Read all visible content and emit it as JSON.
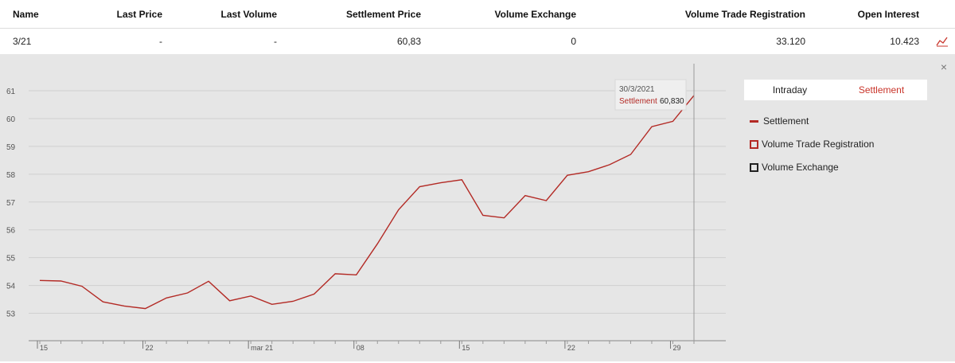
{
  "table": {
    "headers": [
      "Name",
      "Last Price",
      "Last Volume",
      "Settlement Price",
      "Volume Exchange",
      "Volume Trade Registration",
      "Open Interest"
    ],
    "row": {
      "name": "3/21",
      "last_price": "-",
      "last_volume": "-",
      "settlement_price": "60,83",
      "volume_exchange": "0",
      "volume_trade_registration": "33.120",
      "open_interest": "10.423"
    },
    "chart_icon": "line-chart-icon"
  },
  "panel": {
    "close_label": "×",
    "tabs": [
      {
        "label": "Intraday",
        "active": false
      },
      {
        "label": "Settlement",
        "active": true
      }
    ],
    "legend": [
      {
        "label": "Settlement",
        "marker": "line",
        "color": "#b32a25"
      },
      {
        "label": "Volume Trade Registration",
        "marker": "box",
        "color": "#b32a25"
      },
      {
        "label": "Volume Exchange",
        "marker": "box",
        "color": "#222222"
      }
    ],
    "tooltip": {
      "date": "30/3/2021",
      "series": "Settlement",
      "value": "60,830"
    }
  },
  "chart_data": {
    "type": "line",
    "series": [
      {
        "name": "Settlement",
        "color": "#b32a25",
        "x": [
          "2021-02-15",
          "2021-02-16",
          "2021-02-17",
          "2021-02-18",
          "2021-02-19",
          "2021-02-22",
          "2021-02-23",
          "2021-02-24",
          "2021-02-25",
          "2021-02-26",
          "2021-03-01",
          "2021-03-02",
          "2021-03-03",
          "2021-03-04",
          "2021-03-05",
          "2021-03-08",
          "2021-03-09",
          "2021-03-10",
          "2021-03-11",
          "2021-03-12",
          "2021-03-15",
          "2021-03-16",
          "2021-03-17",
          "2021-03-18",
          "2021-03-19",
          "2021-03-22",
          "2021-03-23",
          "2021-03-24",
          "2021-03-25",
          "2021-03-26",
          "2021-03-29",
          "2021-03-30"
        ],
        "values": [
          54.18,
          54.16,
          53.97,
          53.41,
          53.26,
          53.17,
          53.55,
          53.73,
          54.15,
          53.45,
          53.62,
          53.32,
          53.43,
          53.69,
          54.42,
          54.38,
          55.5,
          56.72,
          57.55,
          57.69,
          57.8,
          56.52,
          56.43,
          57.23,
          57.05,
          57.96,
          58.09,
          58.34,
          58.71,
          59.71,
          59.9,
          60.83
        ]
      }
    ],
    "x_tick_labels": [
      "15",
      "22",
      "mar 21",
      "08",
      "15",
      "22",
      "29"
    ],
    "y_ticks": [
      53,
      54,
      55,
      56,
      57,
      58,
      59,
      60,
      61
    ],
    "ylim": [
      52.2,
      61.6
    ],
    "grid": "horizontal",
    "legend_position": "right"
  }
}
